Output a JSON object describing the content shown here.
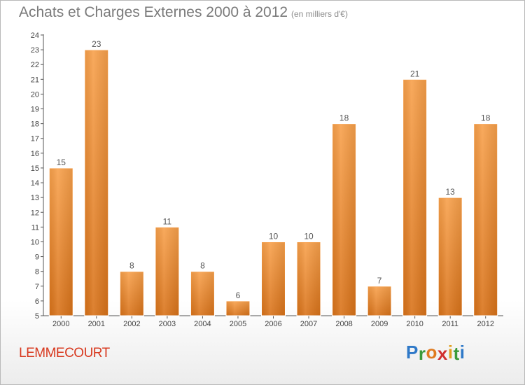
{
  "chart_data": {
    "type": "bar",
    "title": "Achats et Charges Externes 2000 à 2012",
    "subtitle": "(en milliers d'€)",
    "categories": [
      "2000",
      "2001",
      "2002",
      "2003",
      "2004",
      "2005",
      "2006",
      "2007",
      "2008",
      "2009",
      "2010",
      "2011",
      "2012"
    ],
    "values": [
      15,
      23,
      8,
      11,
      8,
      6,
      10,
      10,
      18,
      7,
      21,
      13,
      18
    ],
    "ylim": [
      5,
      24
    ],
    "yticks": [
      5,
      6,
      7,
      8,
      9,
      10,
      11,
      12,
      13,
      14,
      15,
      16,
      17,
      18,
      19,
      20,
      21,
      22,
      23,
      24
    ],
    "grid": false,
    "bar_color": "#f08a2c"
  },
  "commune": "LEMMECOURT",
  "logo": {
    "letters": [
      "P",
      "r",
      "o",
      "x",
      "i",
      "t",
      "i"
    ],
    "colors": [
      "#2f79c8",
      "#3a9a3a",
      "#e07a1f",
      "#d02f2f",
      "#e0a020",
      "#3a9a3a",
      "#2f79c8"
    ]
  }
}
